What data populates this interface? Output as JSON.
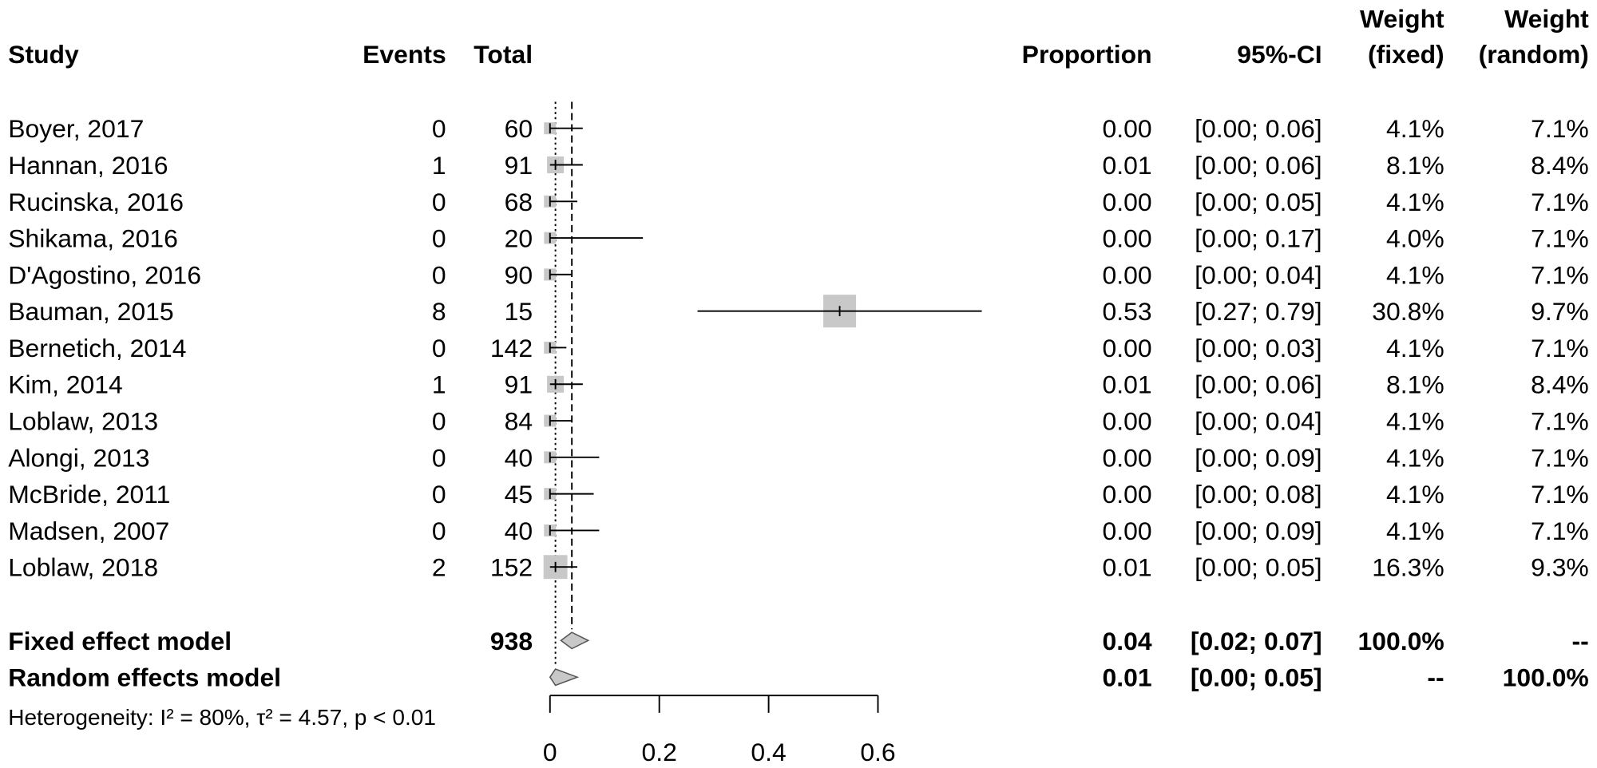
{
  "chart_data": {
    "type": "forest",
    "headers": {
      "study": "Study",
      "events": "Events",
      "total": "Total",
      "proportion": "Proportion",
      "ci": "95%-CI",
      "weight_fixed": [
        "Weight",
        "(fixed)"
      ],
      "weight_random": [
        "Weight",
        "(random)"
      ]
    },
    "studies": [
      {
        "study": "Boyer, 2017",
        "events": 0,
        "total": 60,
        "proportion": 0,
        "proportion_label": "0.00",
        "ci": [
          0,
          0.06
        ],
        "ci_label": "[0.00; 0.06]",
        "weight_fixed": 4.1,
        "weight_fixed_label": "4.1%",
        "weight_random": 7.1,
        "weight_random_label": "7.1%"
      },
      {
        "study": "Hannan, 2016",
        "events": 1,
        "total": 91,
        "proportion": 0.01,
        "proportion_label": "0.01",
        "ci": [
          0,
          0.06
        ],
        "ci_label": "[0.00; 0.06]",
        "weight_fixed": 8.1,
        "weight_fixed_label": "8.1%",
        "weight_random": 8.4,
        "weight_random_label": "8.4%"
      },
      {
        "study": "Rucinska, 2016",
        "events": 0,
        "total": 68,
        "proportion": 0,
        "proportion_label": "0.00",
        "ci": [
          0,
          0.05
        ],
        "ci_label": "[0.00; 0.05]",
        "weight_fixed": 4.1,
        "weight_fixed_label": "4.1%",
        "weight_random": 7.1,
        "weight_random_label": "7.1%"
      },
      {
        "study": "Shikama, 2016",
        "events": 0,
        "total": 20,
        "proportion": 0,
        "proportion_label": "0.00",
        "ci": [
          0,
          0.17
        ],
        "ci_label": "[0.00; 0.17]",
        "weight_fixed": 4.0,
        "weight_fixed_label": "4.0%",
        "weight_random": 7.1,
        "weight_random_label": "7.1%"
      },
      {
        "study": "D'Agostino, 2016",
        "events": 0,
        "total": 90,
        "proportion": 0,
        "proportion_label": "0.00",
        "ci": [
          0,
          0.04
        ],
        "ci_label": "[0.00; 0.04]",
        "weight_fixed": 4.1,
        "weight_fixed_label": "4.1%",
        "weight_random": 7.1,
        "weight_random_label": "7.1%"
      },
      {
        "study": "Bauman, 2015",
        "events": 8,
        "total": 15,
        "proportion": 0.53,
        "proportion_label": "0.53",
        "ci": [
          0.27,
          0.79
        ],
        "ci_label": "[0.27; 0.79]",
        "weight_fixed": 30.8,
        "weight_fixed_label": "30.8%",
        "weight_random": 9.7,
        "weight_random_label": "9.7%"
      },
      {
        "study": "Bernetich, 2014",
        "events": 0,
        "total": 142,
        "proportion": 0,
        "proportion_label": "0.00",
        "ci": [
          0,
          0.03
        ],
        "ci_label": "[0.00; 0.03]",
        "weight_fixed": 4.1,
        "weight_fixed_label": "4.1%",
        "weight_random": 7.1,
        "weight_random_label": "7.1%"
      },
      {
        "study": "Kim, 2014",
        "events": 1,
        "total": 91,
        "proportion": 0.01,
        "proportion_label": "0.01",
        "ci": [
          0,
          0.06
        ],
        "ci_label": "[0.00; 0.06]",
        "weight_fixed": 8.1,
        "weight_fixed_label": "8.1%",
        "weight_random": 8.4,
        "weight_random_label": "8.4%"
      },
      {
        "study": "Loblaw, 2013",
        "events": 0,
        "total": 84,
        "proportion": 0,
        "proportion_label": "0.00",
        "ci": [
          0,
          0.04
        ],
        "ci_label": "[0.00; 0.04]",
        "weight_fixed": 4.1,
        "weight_fixed_label": "4.1%",
        "weight_random": 7.1,
        "weight_random_label": "7.1%"
      },
      {
        "study": "Alongi, 2013",
        "events": 0,
        "total": 40,
        "proportion": 0,
        "proportion_label": "0.00",
        "ci": [
          0,
          0.09
        ],
        "ci_label": "[0.00; 0.09]",
        "weight_fixed": 4.1,
        "weight_fixed_label": "4.1%",
        "weight_random": 7.1,
        "weight_random_label": "7.1%"
      },
      {
        "study": "McBride, 2011",
        "events": 0,
        "total": 45,
        "proportion": 0,
        "proportion_label": "0.00",
        "ci": [
          0,
          0.08
        ],
        "ci_label": "[0.00; 0.08]",
        "weight_fixed": 4.1,
        "weight_fixed_label": "4.1%",
        "weight_random": 7.1,
        "weight_random_label": "7.1%"
      },
      {
        "study": "Madsen, 2007",
        "events": 0,
        "total": 40,
        "proportion": 0,
        "proportion_label": "0.00",
        "ci": [
          0,
          0.09
        ],
        "ci_label": "[0.00; 0.09]",
        "weight_fixed": 4.1,
        "weight_fixed_label": "4.1%",
        "weight_random": 7.1,
        "weight_random_label": "7.1%"
      },
      {
        "study": "Loblaw, 2018",
        "events": 2,
        "total": 152,
        "proportion": 0.01,
        "proportion_label": "0.01",
        "ci": [
          0,
          0.05
        ],
        "ci_label": "[0.00; 0.05]",
        "weight_fixed": 16.3,
        "weight_fixed_label": "16.3%",
        "weight_random": 9.3,
        "weight_random_label": "9.3%"
      }
    ],
    "summaries": [
      {
        "name": "Fixed effect model",
        "total": 938,
        "proportion": 0.04,
        "proportion_label": "0.04",
        "ci": [
          0.02,
          0.07
        ],
        "ci_label": "[0.02; 0.07]",
        "weight_fixed": 100.0,
        "weight_fixed_label": "100.0%",
        "weight_random_label": "--",
        "line": "dashed"
      },
      {
        "name": "Random effects model",
        "proportion": 0.01,
        "proportion_label": "0.01",
        "ci": [
          0,
          0.05
        ],
        "ci_label": "[0.00; 0.05]",
        "weight_fixed_label": "--",
        "weight_random": 100.0,
        "weight_random_label": "100.0%",
        "line": "dotted"
      }
    ],
    "heterogeneity": "Heterogeneity: I² = 80%, τ² = 4.57, p < 0.01",
    "xlim": [
      0,
      0.6
    ],
    "xticks": [
      0,
      0.2,
      0.4,
      0.6
    ],
    "square_color": "#c8c8c8",
    "diamond_color": "#c8c8c8"
  }
}
